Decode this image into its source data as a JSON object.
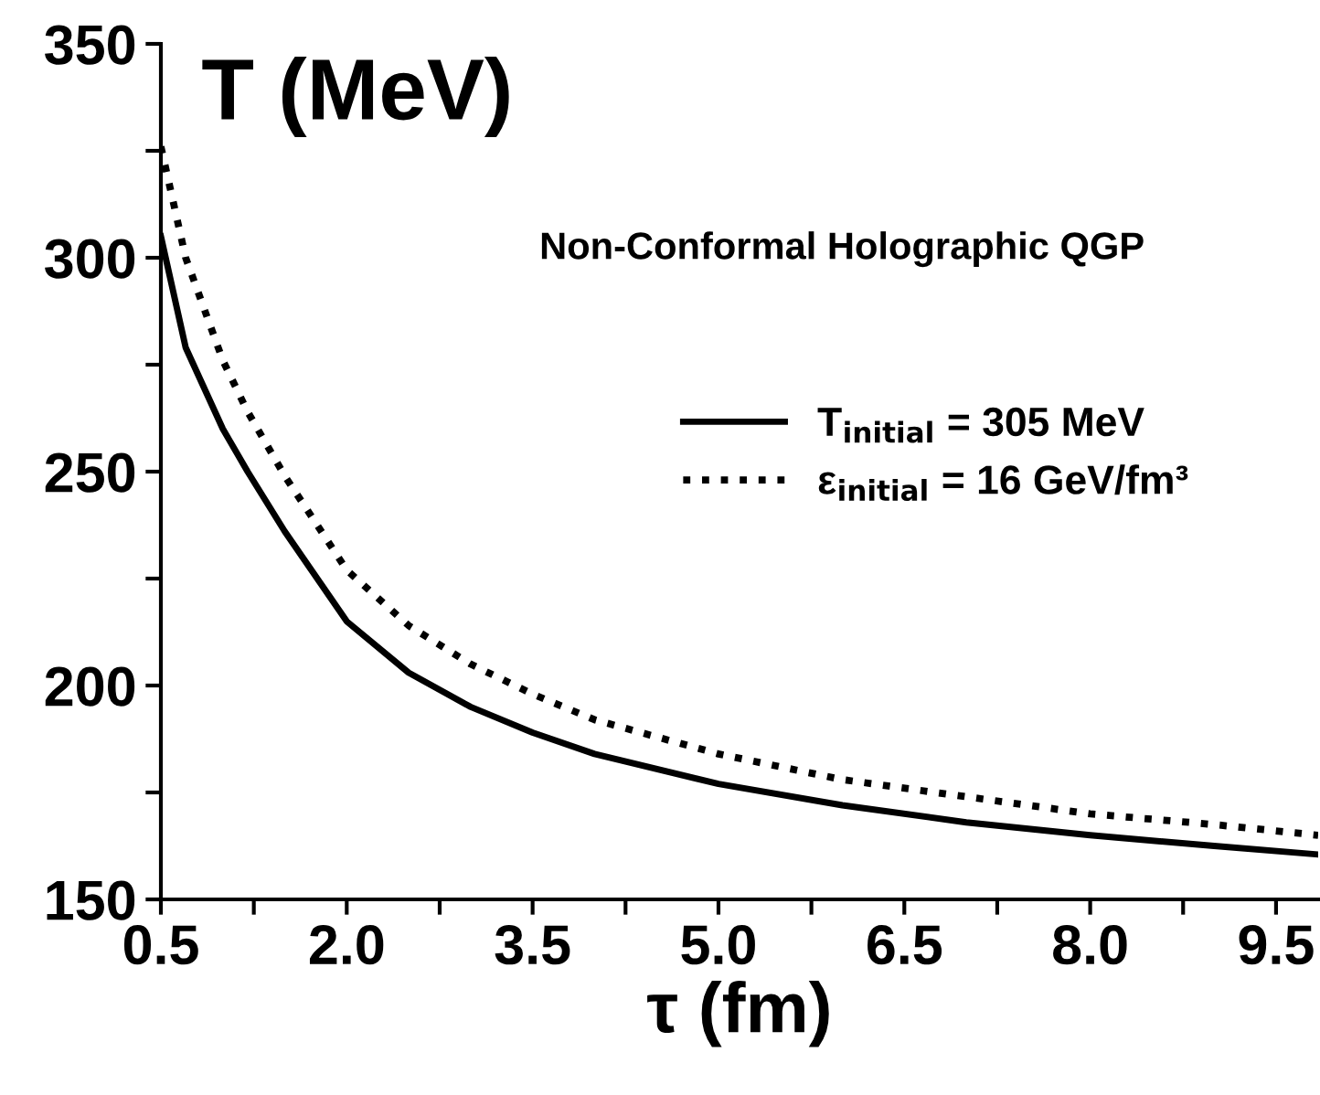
{
  "chart_data": {
    "type": "line",
    "title": "T (MeV)",
    "xlabel": "τ (fm)",
    "annotations": [
      "Non-Conformal Holographic QGP"
    ],
    "x": [
      0.5,
      0.7,
      1.0,
      1.2,
      1.5,
      2.0,
      2.5,
      3.0,
      3.5,
      4.0,
      5.0,
      6.0,
      7.0,
      8.0,
      9.0,
      9.84
    ],
    "series": [
      {
        "name": "T$_{initial}$ = 305 MeV",
        "color": "#000000",
        "line_style": "solid",
        "values": [
          305,
          279,
          260,
          250,
          236,
          215,
          203,
          195,
          189,
          184,
          177,
          172,
          168,
          165,
          162.5,
          160.5
        ]
      },
      {
        "name": "ε$_{initial}$ = 16 GeV/fm³",
        "color": "#000000",
        "line_style": "dotted",
        "values": [
          326,
          300,
          276,
          264,
          249,
          227,
          214,
          205,
          198,
          192,
          184,
          178,
          174,
          170,
          167.5,
          165
        ]
      }
    ],
    "xlim": [
      0.5,
      9.84
    ],
    "ylim": [
      150,
      350
    ],
    "xticks": [
      0.5,
      {
        "value": 1.25,
        "label": null
      },
      {
        "value": 2,
        "label": "2.0"
      },
      {
        "value": 2.75,
        "label": null
      },
      3.5,
      {
        "value": 4.25,
        "label": null
      },
      {
        "value": 5,
        "label": "5.0"
      },
      {
        "value": 5.75,
        "label": null
      },
      6.5,
      {
        "value": 7.25,
        "label": null
      },
      {
        "value": 8,
        "label": "8.0"
      },
      {
        "value": 8.75,
        "label": null
      },
      9.5
    ],
    "yticks": [
      150,
      {
        "value": 175,
        "label": null
      },
      200,
      {
        "value": 225,
        "label": null
      },
      250,
      {
        "value": 275,
        "label": null
      },
      300,
      {
        "value": 325,
        "label": null
      },
      350
    ],
    "legend": "right",
    "grid": false,
    "marker": "none"
  }
}
